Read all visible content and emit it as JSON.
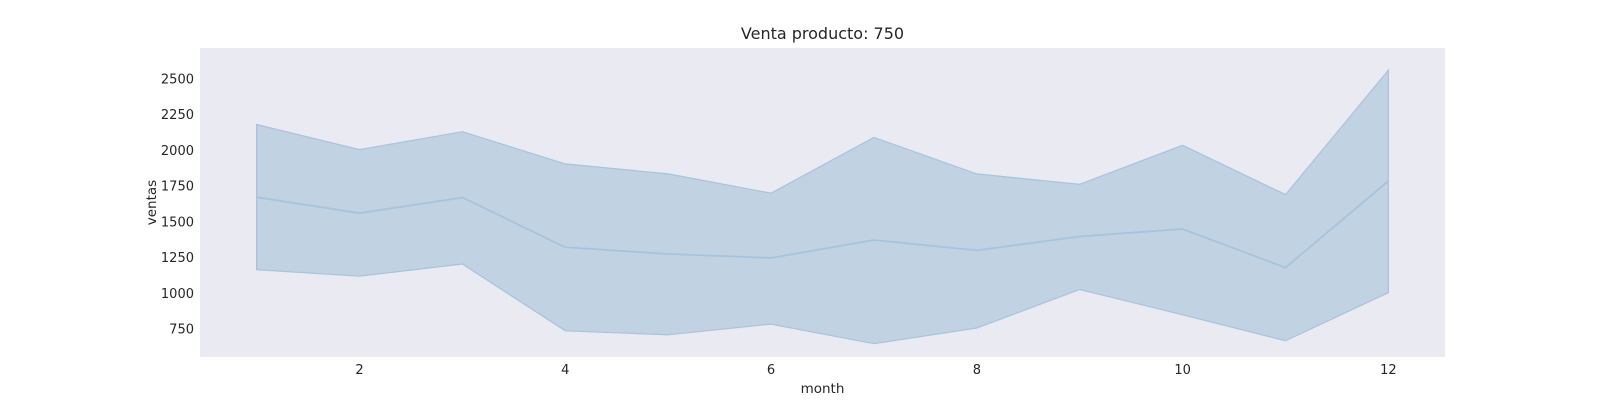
{
  "chart_data": {
    "type": "line",
    "title": "Venta producto: 750",
    "xlabel": "month",
    "ylabel": "ventas",
    "x": [
      1,
      2,
      3,
      4,
      5,
      6,
      7,
      8,
      9,
      10,
      11,
      12
    ],
    "series": [
      {
        "values": [
          1672,
          1560,
          1670,
          1322,
          1275,
          1248,
          1373,
          1300,
          1397,
          1450,
          1180,
          1785
        ],
        "band_upper": [
          2180,
          2005,
          2130,
          1905,
          1835,
          1700,
          2090,
          1835,
          1762,
          2035,
          1690,
          2560
        ],
        "band_lower": [
          1165,
          1120,
          1205,
          738,
          710,
          785,
          648,
          758,
          1027,
          850,
          668,
          1005
        ]
      }
    ],
    "xticks": [
      2,
      4,
      6,
      8,
      10,
      12
    ],
    "yticks": [
      750,
      1000,
      1250,
      1500,
      1750,
      2000,
      2250,
      2500
    ],
    "xlim": [
      0.45,
      12.55
    ],
    "ylim": [
      555,
      2715
    ],
    "grid": false,
    "colors": {
      "plot_background": "#eaeaf2",
      "line": "#a6c4dc",
      "band": "#c1d2e3",
      "band_edge": "#a9c3dc"
    }
  }
}
